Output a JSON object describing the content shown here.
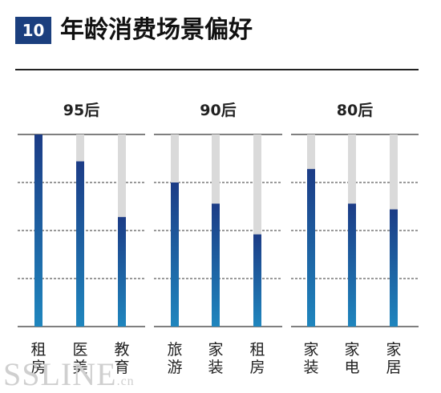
{
  "header": {
    "number": "10",
    "title": "年龄消费场景偏好"
  },
  "colors": {
    "bar_top": "#1c3c86",
    "bar_bottom": "#1f86be",
    "track": "#dadada",
    "badge": "#1b3f7e"
  },
  "watermark": {
    "main": "SSLINE",
    "suffix": ".cn"
  },
  "chart_data": [
    {
      "type": "bar",
      "title": "95后",
      "categories": [
        "租房",
        "医美",
        "教育"
      ],
      "values": [
        100,
        86,
        57
      ],
      "ylim": [
        0,
        100
      ],
      "grid": true
    },
    {
      "type": "bar",
      "title": "90后",
      "categories": [
        "旅游",
        "家装",
        "租房"
      ],
      "values": [
        75,
        64,
        48
      ],
      "ylim": [
        0,
        100
      ],
      "grid": true
    },
    {
      "type": "bar",
      "title": "80后",
      "categories": [
        "家装",
        "家电",
        "家居"
      ],
      "values": [
        82,
        64,
        61
      ],
      "ylim": [
        0,
        100
      ],
      "grid": true
    }
  ]
}
